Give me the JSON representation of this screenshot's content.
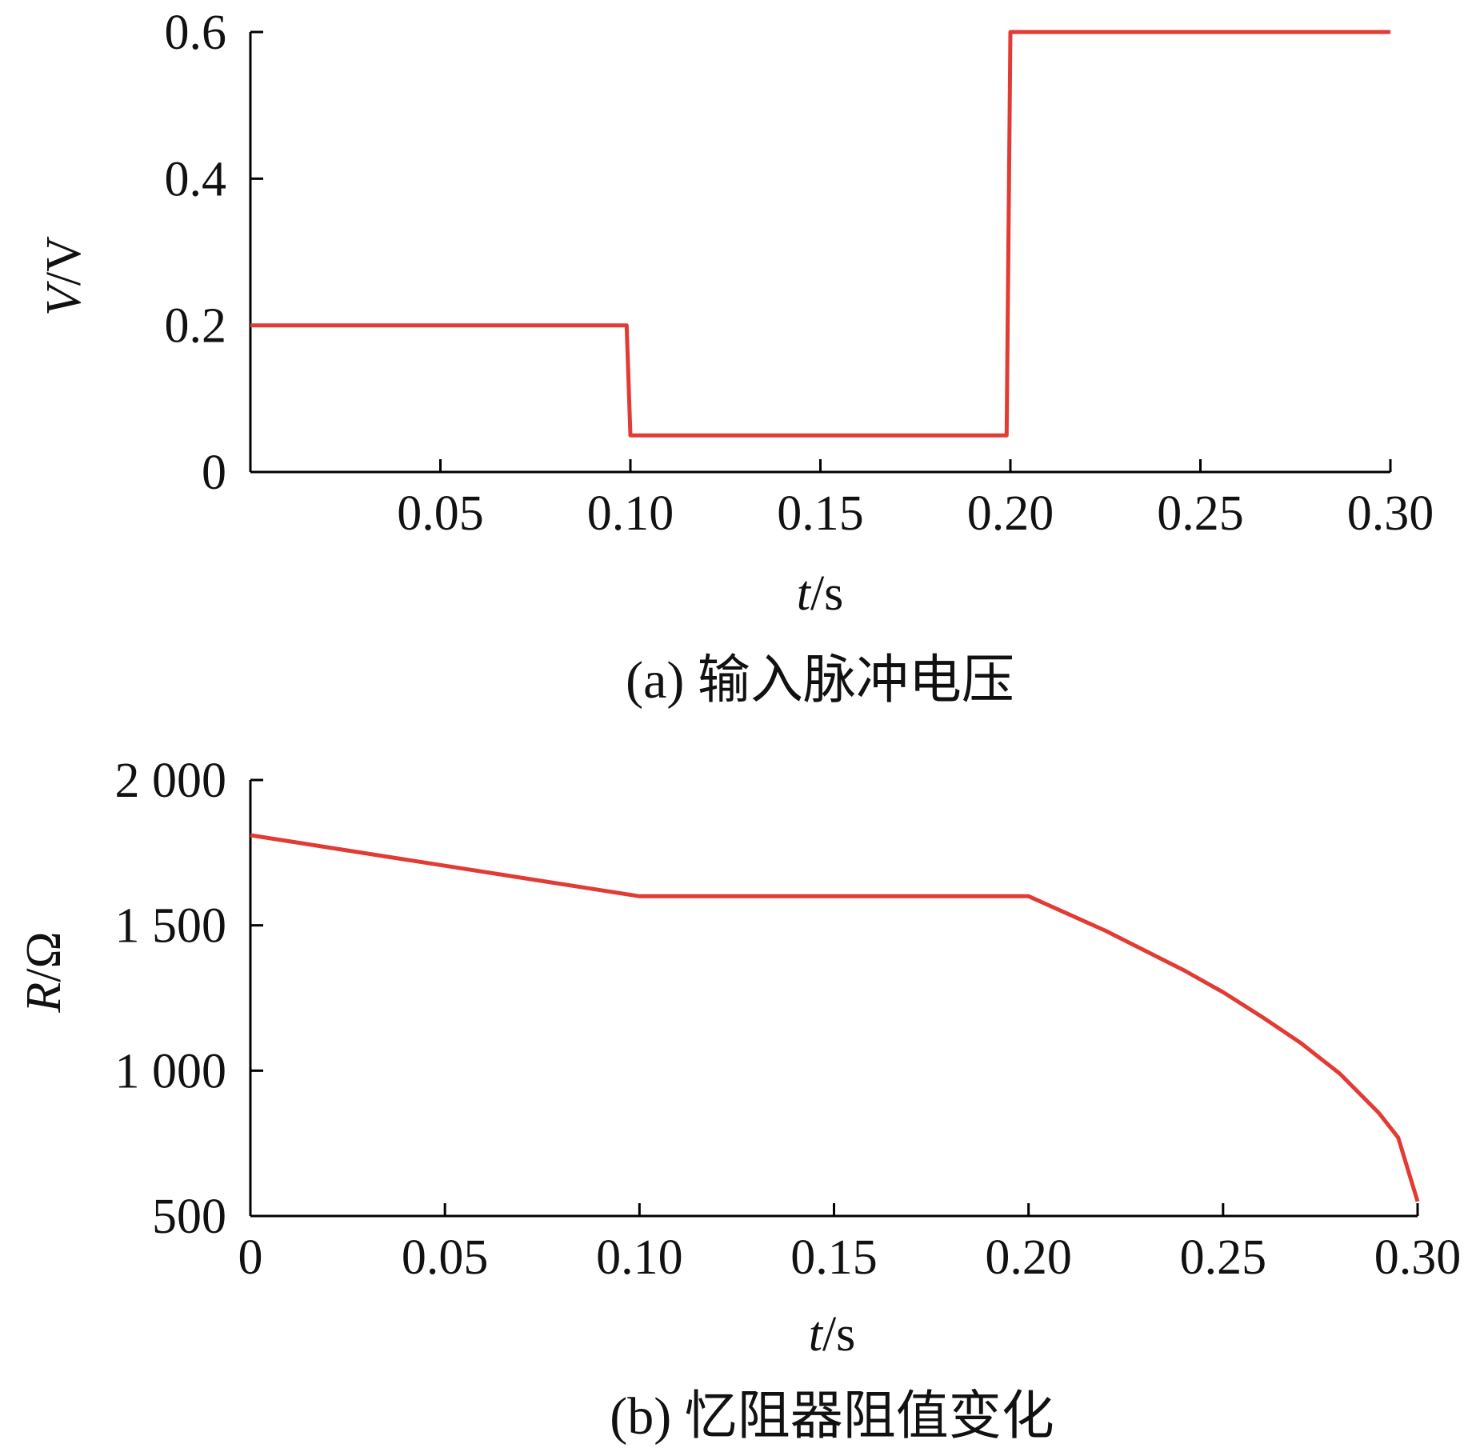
{
  "chart_data": [
    {
      "type": "line",
      "caption": "(a) 输入脉冲电压",
      "xlabel": {
        "var": "t",
        "unit": "/s"
      },
      "ylabel": {
        "var": "V",
        "unit": "/V"
      },
      "xlim": [
        0,
        0.3
      ],
      "ylim": [
        0,
        0.6
      ],
      "xticks": [
        0.05,
        0.1,
        0.15,
        0.2,
        0.25,
        0.3
      ],
      "xtick_labels": [
        "0.05",
        "0.10",
        "0.15",
        "0.20",
        "0.25",
        "0.30"
      ],
      "yticks": [
        0,
        0.2,
        0.4,
        0.6
      ],
      "ytick_labels": [
        "0",
        "0.2",
        "0.4",
        "0.6"
      ],
      "color": "#e23b34",
      "series": [
        {
          "x": [
            0,
            0.099,
            0.1,
            0.199,
            0.2,
            0.3
          ],
          "y": [
            0.2,
            0.2,
            0.05,
            0.05,
            0.6,
            0.6
          ]
        }
      ]
    },
    {
      "type": "line",
      "caption": "(b) 忆阻器阻值变化",
      "xlabel": {
        "var": "t",
        "unit": "/s"
      },
      "ylabel": {
        "var": "R",
        "unit": "/Ω"
      },
      "xlim": [
        0,
        0.3
      ],
      "ylim": [
        500,
        2000
      ],
      "xticks": [
        0,
        0.05,
        0.1,
        0.15,
        0.2,
        0.25,
        0.3
      ],
      "xtick_labels": [
        "0",
        "0.05",
        "0.10",
        "0.15",
        "0.20",
        "0.25",
        "0.30"
      ],
      "yticks": [
        500,
        1000,
        1500,
        2000
      ],
      "ytick_labels": [
        "500",
        "1 000",
        "1 500",
        "2 000"
      ],
      "color": "#e23b34",
      "series": [
        {
          "x": [
            0,
            0.05,
            0.1,
            0.15,
            0.2,
            0.22,
            0.24,
            0.25,
            0.26,
            0.27,
            0.28,
            0.29,
            0.295,
            0.3
          ],
          "y": [
            1810,
            1705,
            1600,
            1600,
            1600,
            1480,
            1345,
            1270,
            1185,
            1095,
            990,
            855,
            770,
            550
          ]
        }
      ]
    }
  ]
}
